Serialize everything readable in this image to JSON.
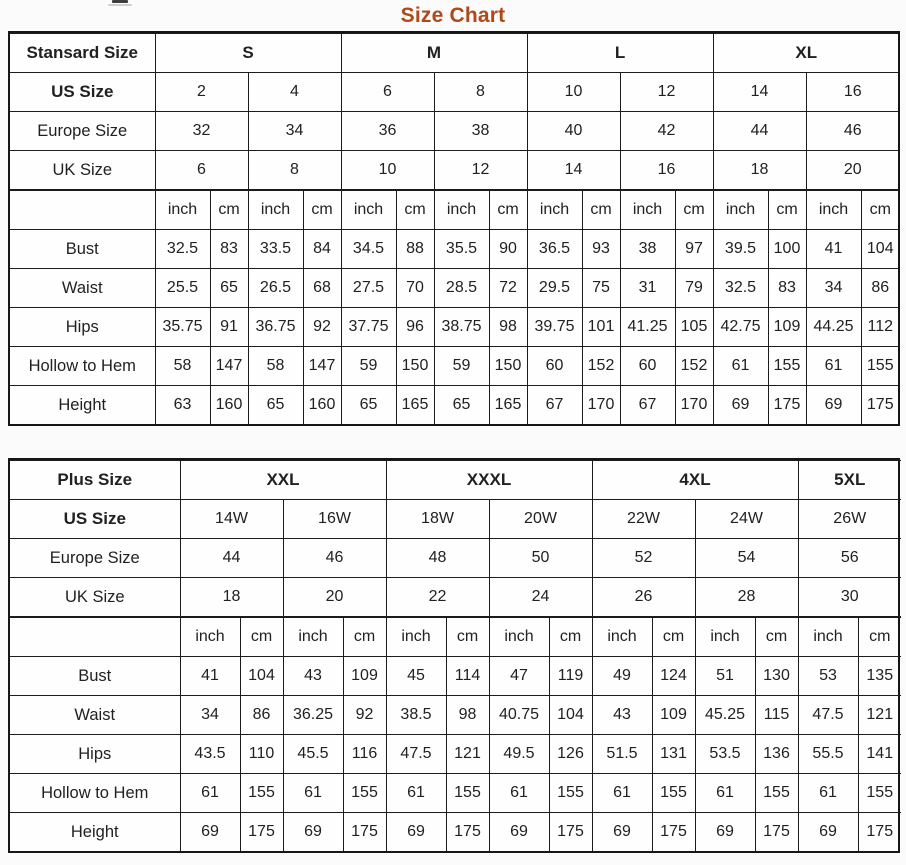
{
  "page_title": "Size Chart",
  "title_color": "#b04818",
  "chart_data": [
    {
      "type": "table",
      "name": "standard-size",
      "corner_label": "Stansard Size",
      "groups": [
        {
          "label": "S",
          "size_count": 2
        },
        {
          "label": "M",
          "size_count": 2
        },
        {
          "label": "L",
          "size_count": 2
        },
        {
          "label": "XL",
          "size_count": 2
        }
      ],
      "size_rows": [
        {
          "label": "US Size",
          "values": [
            "2",
            "4",
            "6",
            "8",
            "10",
            "12",
            "14",
            "16"
          ]
        },
        {
          "label": "Europe Size",
          "values": [
            "32",
            "34",
            "36",
            "38",
            "40",
            "42",
            "44",
            "46"
          ]
        },
        {
          "label": "UK Size",
          "values": [
            "6",
            "8",
            "10",
            "12",
            "14",
            "16",
            "18",
            "20"
          ]
        }
      ],
      "unit_labels": {
        "inch": "inch",
        "cm": "cm"
      },
      "measure_rows": [
        {
          "label": "Bust",
          "values": [
            "32.5",
            "83",
            "33.5",
            "84",
            "34.5",
            "88",
            "35.5",
            "90",
            "36.5",
            "93",
            "38",
            "97",
            "39.5",
            "100",
            "41",
            "104"
          ]
        },
        {
          "label": "Waist",
          "values": [
            "25.5",
            "65",
            "26.5",
            "68",
            "27.5",
            "70",
            "28.5",
            "72",
            "29.5",
            "75",
            "31",
            "79",
            "32.5",
            "83",
            "34",
            "86"
          ]
        },
        {
          "label": "Hips",
          "values": [
            "35.75",
            "91",
            "36.75",
            "92",
            "37.75",
            "96",
            "38.75",
            "98",
            "39.75",
            "101",
            "41.25",
            "105",
            "42.75",
            "109",
            "44.25",
            "112"
          ]
        },
        {
          "label": "Hollow to Hem",
          "values": [
            "58",
            "147",
            "58",
            "147",
            "59",
            "150",
            "59",
            "150",
            "60",
            "152",
            "60",
            "152",
            "61",
            "155",
            "61",
            "155"
          ]
        },
        {
          "label": "Height",
          "values": [
            "63",
            "160",
            "65",
            "160",
            "65",
            "165",
            "65",
            "165",
            "67",
            "170",
            "67",
            "170",
            "69",
            "175",
            "69",
            "175"
          ]
        }
      ]
    },
    {
      "type": "table",
      "name": "plus-size",
      "corner_label": "Plus Size",
      "groups": [
        {
          "label": "XXL",
          "size_count": 2
        },
        {
          "label": "XXXL",
          "size_count": 2
        },
        {
          "label": "4XL",
          "size_count": 2
        },
        {
          "label": "5XL",
          "size_count": 1
        }
      ],
      "size_rows": [
        {
          "label": "US Size",
          "values": [
            "14W",
            "16W",
            "18W",
            "20W",
            "22W",
            "24W",
            "26W"
          ]
        },
        {
          "label": "Europe Size",
          "values": [
            "44",
            "46",
            "48",
            "50",
            "52",
            "54",
            "56"
          ]
        },
        {
          "label": "UK Size",
          "values": [
            "18",
            "20",
            "22",
            "24",
            "26",
            "28",
            "30"
          ]
        }
      ],
      "unit_labels": {
        "inch": "inch",
        "cm": "cm"
      },
      "measure_rows": [
        {
          "label": "Bust",
          "values": [
            "41",
            "104",
            "43",
            "109",
            "45",
            "114",
            "47",
            "119",
            "49",
            "124",
            "51",
            "130",
            "53",
            "135"
          ]
        },
        {
          "label": "Waist",
          "values": [
            "34",
            "86",
            "36.25",
            "92",
            "38.5",
            "98",
            "40.75",
            "104",
            "43",
            "109",
            "45.25",
            "115",
            "47.5",
            "121"
          ]
        },
        {
          "label": "Hips",
          "values": [
            "43.5",
            "110",
            "45.5",
            "116",
            "47.5",
            "121",
            "49.5",
            "126",
            "51.5",
            "131",
            "53.5",
            "136",
            "55.5",
            "141"
          ]
        },
        {
          "label": "Hollow to Hem",
          "values": [
            "61",
            "155",
            "61",
            "155",
            "61",
            "155",
            "61",
            "155",
            "61",
            "155",
            "61",
            "155",
            "61",
            "155"
          ]
        },
        {
          "label": "Height",
          "values": [
            "69",
            "175",
            "69",
            "175",
            "69",
            "175",
            "69",
            "175",
            "69",
            "175",
            "69",
            "175",
            "69",
            "175"
          ]
        }
      ]
    }
  ]
}
